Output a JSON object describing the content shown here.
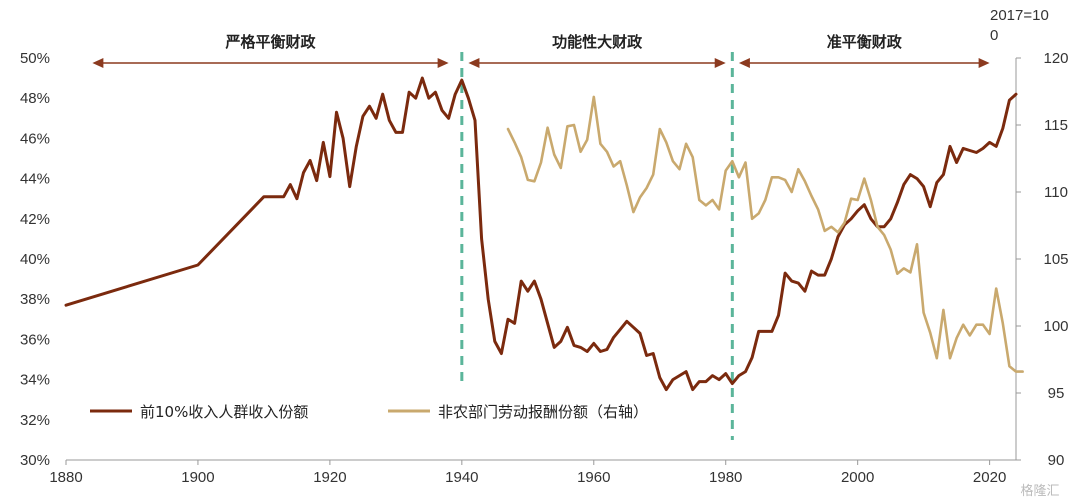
{
  "chart_data": {
    "type": "line",
    "x_ticks": [
      1880,
      1900,
      1920,
      1940,
      1960,
      1980,
      2000,
      2020
    ],
    "xlim": [
      1880,
      2024
    ],
    "y_left": {
      "ticks": [
        "30%",
        "32%",
        "34%",
        "36%",
        "38%",
        "40%",
        "42%",
        "44%",
        "46%",
        "48%",
        "50%"
      ],
      "lim": [
        30,
        50
      ]
    },
    "y_right": {
      "ticks": [
        "90",
        "95",
        "100",
        "105",
        "110",
        "115",
        "120"
      ],
      "lim": [
        90,
        120
      ],
      "unit_line1": "2017=10",
      "unit_line2": "0"
    },
    "phases": [
      {
        "label": "严格平衡财政",
        "from": 1884,
        "to": 1938
      },
      {
        "label": "功能性大财政",
        "from": 1941,
        "to": 1980
      },
      {
        "label": "准平衡财政",
        "from": 1982,
        "to": 2020
      }
    ],
    "dividers": [
      1940,
      1981
    ],
    "series": [
      {
        "name": "前10%收入人群收入份额",
        "axis": "left",
        "color": "#7B2A0E",
        "points": [
          [
            1880,
            37.7
          ],
          [
            1900,
            39.7
          ],
          [
            1910,
            43.1
          ],
          [
            1913,
            43.1
          ],
          [
            1914,
            43.7
          ],
          [
            1915,
            43.0
          ],
          [
            1916,
            44.3
          ],
          [
            1917,
            44.9
          ],
          [
            1918,
            43.9
          ],
          [
            1919,
            45.8
          ],
          [
            1920,
            44.1
          ],
          [
            1921,
            47.3
          ],
          [
            1922,
            46.0
          ],
          [
            1923,
            43.6
          ],
          [
            1924,
            45.6
          ],
          [
            1925,
            47.1
          ],
          [
            1926,
            47.6
          ],
          [
            1927,
            47.0
          ],
          [
            1928,
            48.2
          ],
          [
            1929,
            46.9
          ],
          [
            1930,
            46.3
          ],
          [
            1931,
            46.3
          ],
          [
            1932,
            48.3
          ],
          [
            1933,
            48.0
          ],
          [
            1934,
            49.0
          ],
          [
            1935,
            48.0
          ],
          [
            1936,
            48.3
          ],
          [
            1937,
            47.4
          ],
          [
            1938,
            47.0
          ],
          [
            1939,
            48.2
          ],
          [
            1940,
            48.9
          ],
          [
            1941,
            48.0
          ],
          [
            1942,
            46.9
          ],
          [
            1943,
            41.0
          ],
          [
            1944,
            38.0
          ],
          [
            1945,
            35.9
          ],
          [
            1946,
            35.3
          ],
          [
            1947,
            37.0
          ],
          [
            1948,
            36.8
          ],
          [
            1949,
            38.9
          ],
          [
            1950,
            38.4
          ],
          [
            1951,
            38.9
          ],
          [
            1952,
            38.0
          ],
          [
            1953,
            36.8
          ],
          [
            1954,
            35.6
          ],
          [
            1955,
            35.9
          ],
          [
            1956,
            36.6
          ],
          [
            1957,
            35.7
          ],
          [
            1958,
            35.6
          ],
          [
            1959,
            35.4
          ],
          [
            1960,
            35.8
          ],
          [
            1961,
            35.4
          ],
          [
            1962,
            35.5
          ],
          [
            1963,
            36.1
          ],
          [
            1964,
            36.5
          ],
          [
            1965,
            36.9
          ],
          [
            1966,
            36.6
          ],
          [
            1967,
            36.3
          ],
          [
            1968,
            35.2
          ],
          [
            1969,
            35.3
          ],
          [
            1970,
            34.1
          ],
          [
            1971,
            33.5
          ],
          [
            1972,
            34.0
          ],
          [
            1973,
            34.2
          ],
          [
            1974,
            34.4
          ],
          [
            1975,
            33.5
          ],
          [
            1976,
            33.9
          ],
          [
            1977,
            33.9
          ],
          [
            1978,
            34.2
          ],
          [
            1979,
            34.0
          ],
          [
            1980,
            34.3
          ],
          [
            1981,
            33.8
          ],
          [
            1982,
            34.2
          ],
          [
            1983,
            34.4
          ],
          [
            1984,
            35.1
          ],
          [
            1985,
            36.4
          ],
          [
            1986,
            36.4
          ],
          [
            1987,
            36.4
          ],
          [
            1988,
            37.2
          ],
          [
            1989,
            39.3
          ],
          [
            1990,
            38.9
          ],
          [
            1991,
            38.8
          ],
          [
            1992,
            38.4
          ],
          [
            1993,
            39.4
          ],
          [
            1994,
            39.2
          ],
          [
            1995,
            39.2
          ],
          [
            1996,
            40.0
          ],
          [
            1997,
            41.1
          ],
          [
            1998,
            41.7
          ],
          [
            1999,
            42.0
          ],
          [
            2000,
            42.4
          ],
          [
            2001,
            42.7
          ],
          [
            2002,
            42.0
          ],
          [
            2003,
            41.6
          ],
          [
            2004,
            41.6
          ],
          [
            2005,
            42.0
          ],
          [
            2006,
            42.8
          ],
          [
            2007,
            43.7
          ],
          [
            2008,
            44.2
          ],
          [
            2009,
            44.0
          ],
          [
            2010,
            43.6
          ],
          [
            2011,
            42.6
          ],
          [
            2012,
            43.8
          ],
          [
            2013,
            44.2
          ],
          [
            2014,
            45.6
          ],
          [
            2015,
            44.8
          ],
          [
            2016,
            45.5
          ],
          [
            2017,
            45.4
          ],
          [
            2018,
            45.3
          ],
          [
            2019,
            45.5
          ],
          [
            2020,
            45.8
          ],
          [
            2021,
            45.6
          ],
          [
            2022,
            46.5
          ],
          [
            2023,
            47.9
          ],
          [
            2024,
            48.2
          ]
        ]
      },
      {
        "name": "非农部门劳动报酬份额（右轴）",
        "axis": "right",
        "color": "#C9A96E",
        "points": [
          [
            1947,
            114.7
          ],
          [
            1948,
            113.7
          ],
          [
            1949,
            112.6
          ],
          [
            1950,
            110.9
          ],
          [
            1951,
            110.8
          ],
          [
            1952,
            112.2
          ],
          [
            1953,
            114.8
          ],
          [
            1954,
            112.8
          ],
          [
            1955,
            111.8
          ],
          [
            1956,
            114.9
          ],
          [
            1957,
            115.0
          ],
          [
            1958,
            113.0
          ],
          [
            1959,
            113.9
          ],
          [
            1960,
            117.1
          ],
          [
            1961,
            113.6
          ],
          [
            1962,
            113.0
          ],
          [
            1963,
            111.9
          ],
          [
            1964,
            112.3
          ],
          [
            1965,
            110.5
          ],
          [
            1966,
            108.5
          ],
          [
            1967,
            109.6
          ],
          [
            1968,
            110.3
          ],
          [
            1969,
            111.3
          ],
          [
            1970,
            114.7
          ],
          [
            1971,
            113.7
          ],
          [
            1972,
            112.3
          ],
          [
            1973,
            111.7
          ],
          [
            1974,
            113.6
          ],
          [
            1975,
            112.6
          ],
          [
            1976,
            109.4
          ],
          [
            1977,
            109.0
          ],
          [
            1978,
            109.4
          ],
          [
            1979,
            108.7
          ],
          [
            1980,
            111.6
          ],
          [
            1981,
            112.3
          ],
          [
            1982,
            111.1
          ],
          [
            1983,
            112.2
          ],
          [
            1984,
            108.0
          ],
          [
            1985,
            108.4
          ],
          [
            1986,
            109.4
          ],
          [
            1987,
            111.1
          ],
          [
            1988,
            111.1
          ],
          [
            1989,
            110.9
          ],
          [
            1990,
            110.0
          ],
          [
            1991,
            111.7
          ],
          [
            1992,
            110.8
          ],
          [
            1993,
            109.7
          ],
          [
            1994,
            108.7
          ],
          [
            1995,
            107.1
          ],
          [
            1996,
            107.4
          ],
          [
            1997,
            107.0
          ],
          [
            1998,
            107.7
          ],
          [
            1999,
            109.5
          ],
          [
            2000,
            109.4
          ],
          [
            2001,
            111.0
          ],
          [
            2002,
            109.4
          ],
          [
            2003,
            107.4
          ],
          [
            2004,
            106.8
          ],
          [
            2005,
            105.7
          ],
          [
            2006,
            103.9
          ],
          [
            2007,
            104.3
          ],
          [
            2008,
            104.0
          ],
          [
            2009,
            106.1
          ],
          [
            2010,
            101.0
          ],
          [
            2011,
            99.5
          ],
          [
            2012,
            97.6
          ],
          [
            2013,
            101.2
          ],
          [
            2014,
            97.6
          ],
          [
            2015,
            99.1
          ],
          [
            2016,
            100.1
          ],
          [
            2017,
            99.3
          ],
          [
            2018,
            100.1
          ],
          [
            2019,
            100.1
          ],
          [
            2020,
            99.4
          ],
          [
            2021,
            102.8
          ],
          [
            2022,
            100.2
          ],
          [
            2023,
            97.0
          ],
          [
            2024,
            96.6
          ],
          [
            2025,
            96.6
          ]
        ]
      }
    ],
    "legend_placement": "bottom-left",
    "grid": false
  },
  "watermark": "格隆汇"
}
